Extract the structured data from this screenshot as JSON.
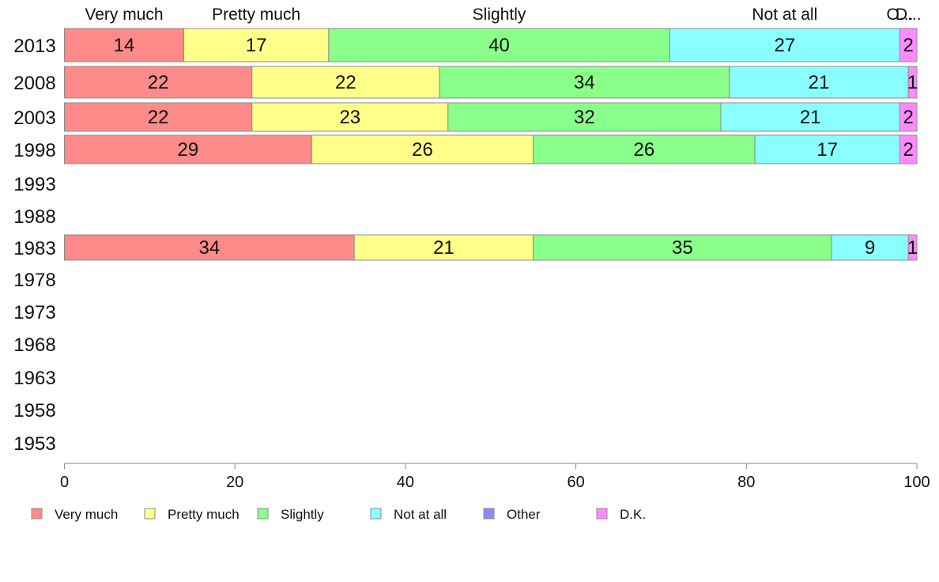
{
  "chart_data": {
    "type": "bar",
    "orientation": "horizontal",
    "stacked": true,
    "categories": [
      "2013",
      "2008",
      "2003",
      "1998",
      "1993",
      "1988",
      "1983",
      "1978",
      "1973",
      "1968",
      "1963",
      "1958",
      "1953"
    ],
    "series": [
      {
        "name": "Very much",
        "color": "#ff8a8a",
        "values": [
          14,
          22,
          22,
          29,
          null,
          null,
          34,
          null,
          null,
          null,
          null,
          null,
          null
        ]
      },
      {
        "name": "Pretty much",
        "color": "#ffff8a",
        "values": [
          17,
          22,
          23,
          26,
          null,
          null,
          21,
          null,
          null,
          null,
          null,
          null,
          null
        ]
      },
      {
        "name": "Slightly",
        "color": "#8aff8a",
        "values": [
          40,
          34,
          32,
          26,
          null,
          null,
          35,
          null,
          null,
          null,
          null,
          null,
          null
        ]
      },
      {
        "name": "Not at all",
        "color": "#8affff",
        "values": [
          27,
          21,
          21,
          17,
          null,
          null,
          9,
          null,
          null,
          null,
          null,
          null,
          null
        ]
      },
      {
        "name": "Other",
        "color": "#8a8aff",
        "values": [
          0,
          0,
          0,
          0,
          null,
          null,
          0,
          null,
          null,
          null,
          null,
          null,
          null
        ]
      },
      {
        "name": "D.K.",
        "color": "#ff8aff",
        "values": [
          2,
          1,
          2,
          2,
          null,
          null,
          1,
          null,
          null,
          null,
          null,
          null,
          null
        ]
      }
    ],
    "column_headers": [
      "Very much",
      "Pretty much",
      "Slightly",
      "Not at all",
      "O...",
      "D..."
    ],
    "xlim": [
      0,
      100
    ],
    "xticks": [
      0,
      20,
      40,
      60,
      80,
      100
    ],
    "grid": false,
    "legend_position": "bottom"
  }
}
